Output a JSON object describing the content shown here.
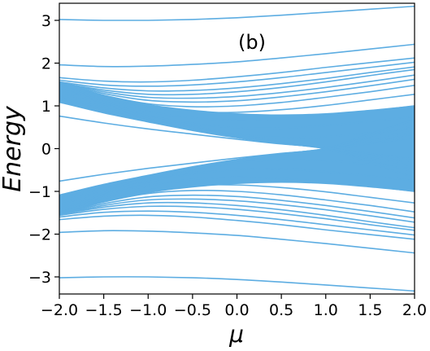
{
  "chart_data": {
    "type": "line",
    "title": "",
    "annotation": "(b)",
    "xlabel": "μ",
    "ylabel": "Energy",
    "xlim": [
      -2.0,
      2.0
    ],
    "ylim": [
      -3.4,
      3.4
    ],
    "xticks": [
      -2.0,
      -1.5,
      -1.0,
      -0.5,
      0.0,
      0.5,
      1.0,
      1.5,
      2.0
    ],
    "xtick_labels": [
      "−2.0",
      "−1.5",
      "−1.0",
      "−0.5",
      "0.0",
      "0.5",
      "1.0",
      "1.5",
      "2.0"
    ],
    "yticks": [
      3,
      2,
      1,
      0,
      -1,
      -2,
      -3
    ],
    "ytick_labels": [
      "3",
      "2",
      "1",
      "0",
      "−1",
      "−2",
      "−3"
    ],
    "grid": false,
    "line_color": "#5DADE2",
    "x": [
      -2.0,
      -1.5,
      -1.0,
      -0.5,
      0.0,
      0.5,
      1.0,
      1.5,
      2.0
    ],
    "series": [
      {
        "values": [
          3.02,
          3.0,
          3.0,
          3.02,
          3.06,
          3.12,
          3.19,
          3.26,
          3.33
        ]
      },
      {
        "values": [
          1.96,
          1.92,
          1.93,
          1.97,
          2.03,
          2.12,
          2.22,
          2.33,
          2.44
        ]
      },
      {
        "values": [
          1.66,
          1.58,
          1.56,
          1.6,
          1.68,
          1.78,
          1.9,
          2.01,
          2.12
        ]
      },
      {
        "values": [
          1.6,
          1.49,
          1.46,
          1.49,
          1.56,
          1.66,
          1.78,
          1.9,
          2.02
        ]
      },
      {
        "values": [
          1.56,
          1.42,
          1.35,
          1.36,
          1.42,
          1.52,
          1.64,
          1.78,
          1.91
        ]
      },
      {
        "values": [
          1.54,
          1.37,
          1.27,
          1.27,
          1.33,
          1.43,
          1.56,
          1.71,
          1.85
        ]
      },
      {
        "values": [
          1.54,
          1.33,
          1.2,
          1.18,
          1.22,
          1.31,
          1.43,
          1.57,
          1.72
        ]
      },
      {
        "values": [
          1.53,
          1.29,
          1.13,
          1.09,
          1.12,
          1.21,
          1.33,
          1.47,
          1.62
        ]
      },
      {
        "values": [
          1.53,
          1.25,
          1.05,
          0.98,
          1.0,
          1.08,
          1.2,
          1.33,
          1.48
        ]
      },
      {
        "values": [
          1.52,
          1.2,
          0.97,
          0.86,
          0.85,
          0.91,
          1.01,
          1.14,
          1.27
        ]
      },
      {
        "values": [
          1.52,
          1.14,
          0.87,
          0.72,
          0.67,
          0.7,
          0.78,
          0.88,
          1.0
        ]
      },
      {
        "values": [
          1.51,
          1.09,
          0.78,
          0.59,
          0.49,
          0.48,
          0.54,
          0.64,
          0.75
        ]
      },
      {
        "values": [
          1.5,
          1.04,
          0.7,
          0.48,
          0.33,
          0.26,
          0.28,
          0.37,
          0.47
        ]
      },
      {
        "values": [
          1.4,
          1.08,
          0.79,
          0.54,
          0.32,
          0.15,
          0.02,
          -0.12,
          -0.25
        ]
      },
      {
        "values": [
          1.32,
          1.0,
          0.73,
          0.49,
          0.29,
          0.13,
          0.0,
          -0.21,
          -0.42
        ]
      },
      {
        "values": [
          1.24,
          0.95,
          0.69,
          0.46,
          0.27,
          0.12,
          0.0,
          -0.28,
          -0.55
        ]
      },
      {
        "values": [
          1.17,
          0.9,
          0.66,
          0.44,
          0.26,
          0.12,
          0.0,
          -0.34,
          -0.68
        ]
      },
      {
        "values": [
          0.76,
          0.6,
          0.46,
          0.34,
          0.22,
          0.11,
          0.02,
          -0.15,
          -0.35
        ]
      },
      {
        "values": [
          -0.76,
          -0.6,
          -0.46,
          -0.34,
          -0.22,
          -0.11,
          -0.02,
          0.15,
          0.35
        ]
      },
      {
        "values": [
          -1.17,
          -0.9,
          -0.66,
          -0.44,
          -0.26,
          -0.12,
          0.0,
          0.34,
          0.68
        ]
      },
      {
        "values": [
          -1.24,
          -0.95,
          -0.69,
          -0.46,
          -0.27,
          -0.12,
          0.0,
          0.28,
          0.55
        ]
      },
      {
        "values": [
          -1.32,
          -1.0,
          -0.73,
          -0.49,
          -0.29,
          -0.13,
          0.0,
          0.21,
          0.42
        ]
      },
      {
        "values": [
          -1.4,
          -1.08,
          -0.79,
          -0.54,
          -0.32,
          -0.15,
          -0.02,
          0.12,
          0.25
        ]
      },
      {
        "values": [
          -1.5,
          -1.04,
          -0.7,
          -0.48,
          -0.33,
          -0.26,
          -0.28,
          -0.37,
          -0.47
        ]
      },
      {
        "values": [
          -1.51,
          -1.09,
          -0.78,
          -0.59,
          -0.49,
          -0.48,
          -0.54,
          -0.64,
          -0.75
        ]
      },
      {
        "values": [
          -1.52,
          -1.14,
          -0.87,
          -0.72,
          -0.67,
          -0.7,
          -0.78,
          -0.88,
          -1.0
        ]
      },
      {
        "values": [
          -1.52,
          -1.2,
          -0.97,
          -0.86,
          -0.85,
          -0.91,
          -1.01,
          -1.14,
          -1.27
        ]
      },
      {
        "values": [
          -1.53,
          -1.25,
          -1.05,
          -0.98,
          -1.0,
          -1.08,
          -1.2,
          -1.33,
          -1.48
        ]
      },
      {
        "values": [
          -1.53,
          -1.29,
          -1.13,
          -1.09,
          -1.12,
          -1.21,
          -1.33,
          -1.47,
          -1.62
        ]
      },
      {
        "values": [
          -1.54,
          -1.33,
          -1.2,
          -1.18,
          -1.22,
          -1.31,
          -1.43,
          -1.57,
          -1.72
        ]
      },
      {
        "values": [
          -1.54,
          -1.37,
          -1.27,
          -1.27,
          -1.33,
          -1.43,
          -1.56,
          -1.71,
          -1.85
        ]
      },
      {
        "values": [
          -1.56,
          -1.42,
          -1.35,
          -1.36,
          -1.42,
          -1.52,
          -1.64,
          -1.78,
          -1.91
        ]
      },
      {
        "values": [
          -1.6,
          -1.49,
          -1.46,
          -1.49,
          -1.56,
          -1.66,
          -1.78,
          -1.9,
          -2.02
        ]
      },
      {
        "values": [
          -1.66,
          -1.58,
          -1.56,
          -1.6,
          -1.68,
          -1.78,
          -1.9,
          -2.01,
          -2.12
        ]
      },
      {
        "values": [
          -1.96,
          -1.92,
          -1.93,
          -1.97,
          -2.03,
          -2.12,
          -2.22,
          -2.33,
          -2.44
        ]
      },
      {
        "values": [
          -3.02,
          -3.0,
          -3.0,
          -3.02,
          -3.06,
          -3.12,
          -3.19,
          -3.26,
          -3.33
        ]
      }
    ],
    "bands": [
      {
        "upper": [
          1.53,
          1.24,
          1.03,
          0.9,
          0.82,
          0.79,
          0.82,
          0.9,
          1.0
        ],
        "lower": [
          1.08,
          0.83,
          0.62,
          0.42,
          0.25,
          0.12,
          0.0,
          -0.35,
          -0.7
        ]
      },
      {
        "upper": [
          -1.08,
          -0.83,
          -0.62,
          -0.42,
          -0.25,
          -0.12,
          0.0,
          0.35,
          0.7
        ],
        "lower": [
          -1.53,
          -1.24,
          -1.03,
          -0.9,
          -0.82,
          -0.79,
          -0.82,
          -0.9,
          -1.0
        ]
      }
    ]
  }
}
